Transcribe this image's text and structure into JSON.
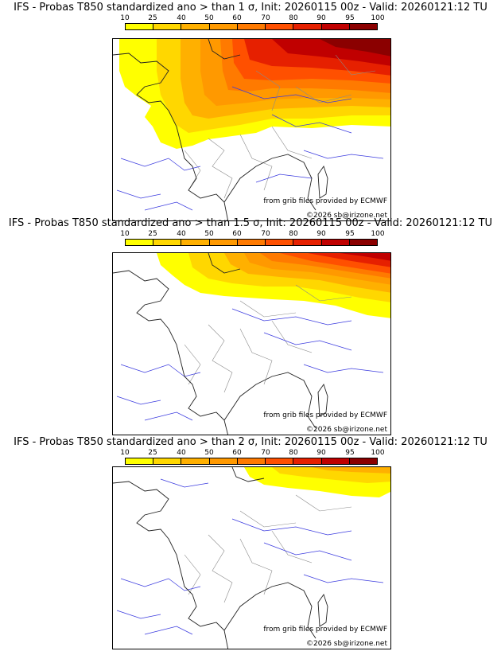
{
  "colorbar": {
    "ticks": [
      "10",
      "25",
      "40",
      "50",
      "60",
      "70",
      "80",
      "90",
      "95",
      "100"
    ],
    "colors": [
      "#ffff00",
      "#ffd700",
      "#ffb000",
      "#ff9900",
      "#ff7a00",
      "#ff5000",
      "#e62000",
      "#c00000",
      "#8b0000"
    ]
  },
  "panels": [
    {
      "title": "IFS - Probas T850  standardized ano > than 1 σ, Init: 20260115 00z - Valid: 20260121:12 TU",
      "credit_source": "from grib files provided by ECMWF",
      "credit_copyright": "©2026 sb@irizone.net"
    },
    {
      "title": "IFS - Probas T850  standardized ano > than 1.5 σ, Init: 20260115 00z - Valid: 20260121:12 TU",
      "credit_source": "from grib files provided by ECMWF",
      "credit_copyright": "©2026 sb@irizone.net"
    },
    {
      "title": "IFS - Probas T850  standardized ano > than 2 σ, Init: 20260115 00z - Valid: 20260121:12 TU",
      "credit_source": "from grib files provided by ECMWF",
      "credit_copyright": "©2026 sb@irizone.net"
    }
  ]
}
